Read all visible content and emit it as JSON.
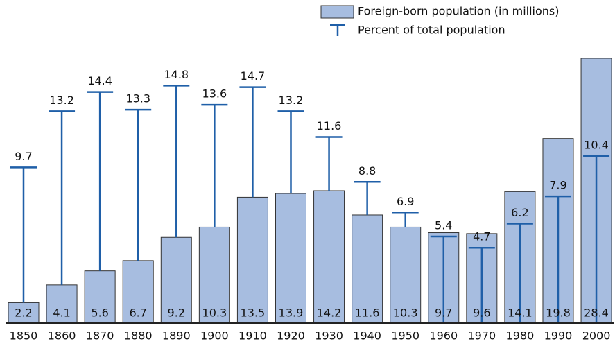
{
  "chart_data": {
    "type": "bar",
    "categories": [
      "1850",
      "1860",
      "1870",
      "1880",
      "1890",
      "1900",
      "1910",
      "1920",
      "1930",
      "1940",
      "1950",
      "1960",
      "1970",
      "1980",
      "1990",
      "2000"
    ],
    "series": [
      {
        "name": "Foreign-born population (in millions)",
        "color": "#a7bde0",
        "values": [
          2.2,
          4.1,
          5.6,
          6.7,
          9.2,
          10.3,
          13.5,
          13.9,
          14.2,
          11.6,
          10.3,
          9.7,
          9.6,
          14.1,
          19.8,
          28.4
        ]
      },
      {
        "name": "Percent of total population",
        "color": "#1f5fa8",
        "axis": "y2",
        "values": [
          9.7,
          13.2,
          14.4,
          13.3,
          14.8,
          13.6,
          14.7,
          13.2,
          11.6,
          8.8,
          6.9,
          5.4,
          4.7,
          6.2,
          7.9,
          10.4
        ]
      }
    ],
    "ylim": [
      0,
      28.4
    ],
    "y2lim": [
      0,
      16.5
    ]
  }
}
